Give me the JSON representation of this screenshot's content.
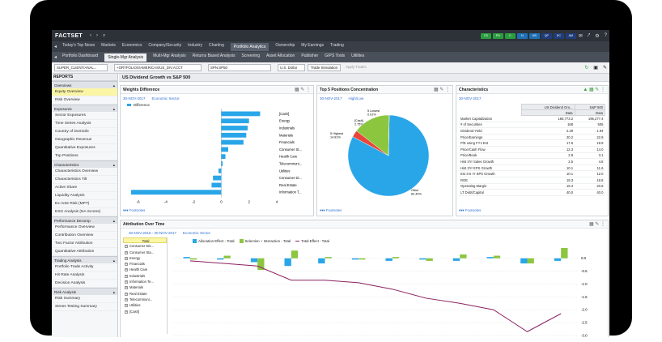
{
  "app": {
    "logo": "FACTSET"
  },
  "top_nav": [
    "Today's Top News",
    "Markets",
    "Economics",
    "Company/Security",
    "Industry",
    "Charting",
    "Portfolio Analytics",
    "Ownership",
    "My Earnings",
    "Trading"
  ],
  "quick_buttons": [
    {
      "label": "CS",
      "color": "#2a9d3f"
    },
    {
      "label": "PG",
      "color": "#2a9d3f"
    },
    {
      "label": "C",
      "color": "#2a9d3f"
    },
    {
      "label": "N",
      "color": "#1f6fb5"
    },
    {
      "label": "NS",
      "color": "#1f6fb5"
    },
    {
      "label": "QP",
      "color": "#1f3d7a"
    },
    {
      "label": "DC",
      "color": "#1f3d7a"
    },
    {
      "label": "AM",
      "color": "#1f3d7a"
    }
  ],
  "sub_tabs": [
    "Portfolio Dashboard",
    "Single-Mgr Analysis",
    "Multi-Mgr Analysis",
    "Returns Based Analysis",
    "Screening",
    "Asset Allocation",
    "Publisher",
    "GIPS Tools",
    "Utilities"
  ],
  "toolbar": {
    "account": "SUPER_CLIENT/ANAL...",
    "path": "+ORTFOLIOS/AMERICAS/US_DIV.ACCT",
    "benchmark": "SPN:SP50",
    "currency": "U.S. Dollar",
    "simulate": "Trade Simulation",
    "trades": "Apply Trades"
  },
  "sidebar": {
    "title": "REPORTS",
    "groups": [
      {
        "label": "Overviews",
        "items": [
          "Equity Overview",
          "Risk Overview"
        ]
      },
      {
        "label": "Exposures",
        "items": [
          "Sector Exposures",
          "Time Series Analysis",
          "Country of Domicile",
          "Geographic Revenue",
          "Quantitative Exposures",
          "Top Positions"
        ]
      },
      {
        "label": "Characteristics",
        "items": [
          "Characteristics Overview",
          "Characteristics Tilt",
          "Active Share",
          "Liquidity Analysis",
          "Ex-Ante Risk (MPT)",
          "ESG Analysis (NA Scores)"
        ]
      },
      {
        "label": "Performance Decomp",
        "items": [
          "Performance Overview",
          "Contribution Overview",
          "Two Factor Attribution",
          "Quantitative Attribution"
        ]
      },
      {
        "label": "Trading Analysis",
        "items": [
          "Portfolio Trade Activity",
          "Hit Rate Analysis",
          "Decision Analysis"
        ]
      },
      {
        "label": "Risk Analysis",
        "items": [
          "Risk Summary",
          "Stress Testing Summary"
        ]
      }
    ]
  },
  "main": {
    "title": "US Dividend Growth vs S&P 500"
  },
  "weights": {
    "title": "Weights Difference",
    "date": "30-NOV-2017",
    "grouping": "Economic Sector",
    "legend": "Difference",
    "footnotes": "Footnotes",
    "chart_data": {
      "type": "bar",
      "categories": [
        "[Cash]",
        "Energy",
        "Industrials",
        "Materials",
        "Financials",
        "Consumer St...",
        "Health Care",
        "Telecommuni...",
        "Utilities",
        "Consumer Di...",
        "Real Estate",
        "Information T..."
      ],
      "values": [
        2.8,
        2.0,
        1.9,
        1.8,
        1.6,
        0.5,
        0.3,
        0.1,
        -0.2,
        -0.6,
        -0.7,
        -6.5
      ],
      "xlim": [
        -6.5,
        4
      ],
      "ticks": [
        -6,
        -4,
        -2,
        0,
        2,
        4
      ],
      "color": "#29a6e8"
    }
  },
  "top5": {
    "title": "Top 5 Positions Concentration",
    "date": "30-NOV-2017",
    "grouping": "High/Low",
    "footnotes": "Footnotes",
    "chart_data": {
      "type": "pie",
      "slices": [
        {
          "name": "Other",
          "label": "Other\n82.44%",
          "value": 82.44,
          "color": "#29a6e8"
        },
        {
          "name": "[Cash]",
          "label": "[Cash]\n2.75%",
          "value": 2.75,
          "color": "#e8463a"
        },
        {
          "name": "5 Highest",
          "label": "5 Highest\n14.81%",
          "value": 14.81,
          "color": "#8cc63f"
        },
        {
          "name": "5 Lowest",
          "label": "5 Lowest\n0.01%",
          "value": 0.01,
          "color": "#8a2060"
        }
      ]
    }
  },
  "characteristics": {
    "title": "Characteristics",
    "date": "30-NOV-2017",
    "footnotes": "Footnotes",
    "columns": [
      "US Dividend Gro...",
      "S&P 500"
    ],
    "subcol": "Data",
    "rows": [
      [
        "Market Capitalization",
        "166,773.2",
        "195,277.4"
      ],
      [
        "# of Securities",
        "168",
        "505"
      ],
      [
        "Dividend Yield",
        "2.29",
        "1.94"
      ],
      [
        "Price/Earnings",
        "20.2",
        "22.9"
      ],
      [
        "P/E using FY1 Est",
        "17.6",
        "19.9"
      ],
      [
        "Price/Cash Flow",
        "12.3",
        "14.0"
      ],
      [
        "Price/Book",
        "2.8",
        "3.1"
      ],
      [
        "Hist 3Yr Sales Growth",
        "2.5",
        "4.8"
      ],
      [
        "Hist 3Yr EPS Growth",
        "10.1",
        "11.6"
      ],
      [
        "Est 3-5 Yr EPS Growth",
        "10.1",
        "12.0"
      ],
      [
        "ROE",
        "19.3",
        "18.8"
      ],
      [
        "Operating Margin",
        "19.4",
        "20.6"
      ],
      [
        "LT Debt/Capital",
        "40.0",
        "40.0"
      ]
    ]
  },
  "attribution": {
    "title": "Attribution Over Time",
    "date": "30-NOV-2016 - 30-NOV-2017",
    "grouping": "Economic Sector",
    "legend": [
      "Allocation Effect - Total",
      "Selection + Interaction - Total",
      "Total Effect - Total"
    ],
    "list": [
      "Total",
      "Consumer Dis...",
      "Consumer Sta...",
      "Energy",
      "Financials",
      "Health Care",
      "Industrials",
      "Information Te...",
      "Materials",
      "Real Estate",
      "Telecommuni...",
      "Utilities",
      "[Cash]"
    ],
    "chart_data": {
      "type": "bar",
      "ylim": [
        -3,
        0.4
      ],
      "yticks": [
        0,
        -0.5,
        -1,
        -1.5,
        -2,
        -2.5,
        -3
      ],
      "series": [
        {
          "name": "Allocation Effect - Total",
          "color": "#29a6e8",
          "values": [
            0.05,
            -0.05,
            -0.15,
            -0.3,
            -0.2,
            -0.05,
            -0.1,
            -0.05,
            -0.1,
            0.05,
            -0.2,
            -0.1
          ]
        },
        {
          "name": "Selection + Interaction - Total",
          "color": "#8cc63f",
          "values": [
            -0.05,
            0.1,
            -0.45,
            0.3,
            0.05,
            -0.05,
            0.05,
            -0.1,
            0.15,
            0.1,
            -0.2,
            0.4
          ]
        },
        {
          "name": "Total Effect - Total",
          "color": "#8a2060",
          "values": [
            -0.1,
            -0.2,
            -0.3,
            -0.85,
            -0.85,
            -0.95,
            -1.2,
            -1.55,
            -1.75,
            -2.0,
            -2.85,
            -2.15
          ]
        }
      ]
    }
  }
}
